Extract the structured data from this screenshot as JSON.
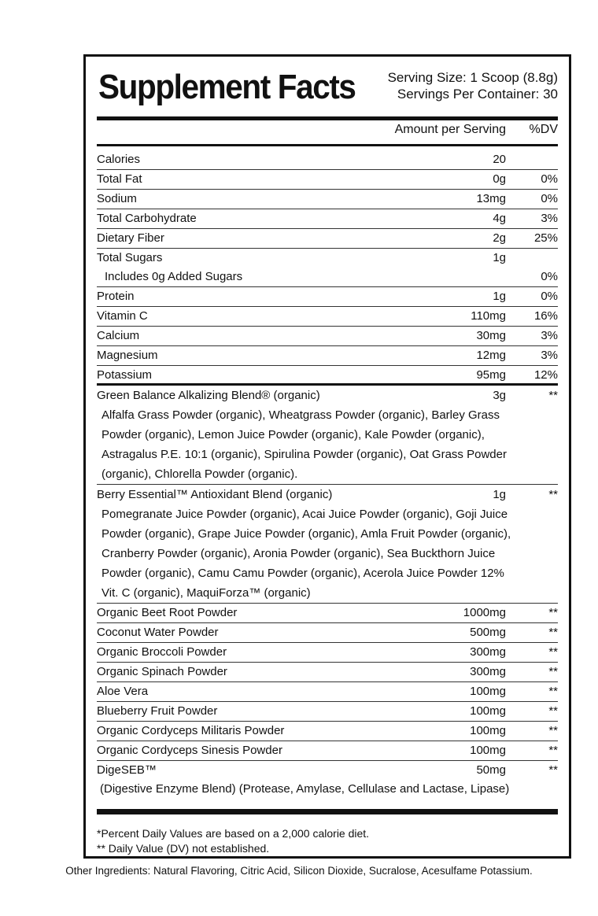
{
  "title": "Supplement Facts",
  "serving_size": "Serving Size: 1  Scoop (8.8g)",
  "servings_per_container": "Servings Per Container: 30",
  "header": {
    "amount": "Amount per Serving",
    "dv": "%DV"
  },
  "nutrients": [
    {
      "name": "Calories",
      "amount": "20",
      "dv": ""
    },
    {
      "name": "Total Fat",
      "amount": "0g",
      "dv": "0%"
    },
    {
      "name": "Sodium",
      "amount": "13mg",
      "dv": "0%"
    },
    {
      "name": "Total Carbohydrate",
      "amount": "4g",
      "dv": "3%"
    },
    {
      "name": "Dietary Fiber",
      "amount": "2g",
      "dv": "25%"
    },
    {
      "name": "Total Sugars",
      "amount": "1g",
      "dv": ""
    },
    {
      "name": "Includes 0g Added Sugars",
      "amount": "",
      "dv": "0%"
    },
    {
      "name": "Protein",
      "amount": "1g",
      "dv": "0%"
    },
    {
      "name": "Vitamin C",
      "amount": "110mg",
      "dv": "16%"
    },
    {
      "name": "Calcium",
      "amount": "30mg",
      "dv": "3%"
    },
    {
      "name": "Magnesium",
      "amount": "12mg",
      "dv": "3%"
    },
    {
      "name": "Potassium",
      "amount": "95mg",
      "dv": "12%"
    }
  ],
  "blends": [
    {
      "name": "Green Balance Alkalizing Blend® (organic)",
      "amount": "3g",
      "dv": "**",
      "lines": [
        "Alfalfa Grass Powder (organic), Wheatgrass Powder (organic), Barley Grass",
        "Powder (organic), Lemon Juice Powder (organic), Kale Powder (organic),",
        "Astragalus P.E. 10:1 (organic), Spirulina Powder (organic), Oat Grass Powder",
        "(organic), Chlorella Powder (organic)."
      ]
    },
    {
      "name": "Berry Essential™ Antioxidant Blend (organic)",
      "amount": "1g",
      "dv": "**",
      "lines": [
        "Pomegranate Juice Powder (organic), Acai Juice Powder (organic), Goji Juice",
        "Powder (organic), Grape Juice Powder (organic), Amla Fruit Powder (organic),",
        "Cranberry Powder (organic), Aronia Powder (organic), Sea Buckthorn Juice",
        "Powder (organic), Camu Camu Powder (organic), Acerola Juice Powder 12%",
        "Vit. C (organic), MaquiForza™ (organic)"
      ]
    }
  ],
  "ingredients": [
    {
      "name": "Organic Beet Root Powder",
      "amount": "1000mg",
      "dv": "**"
    },
    {
      "name": "Coconut Water Powder",
      "amount": "500mg",
      "dv": "**"
    },
    {
      "name": "Organic Broccoli Powder",
      "amount": "300mg",
      "dv": "**"
    },
    {
      "name": "Organic Spinach Powder",
      "amount": "300mg",
      "dv": "**"
    },
    {
      "name": "Aloe Vera",
      "amount": "100mg",
      "dv": "**"
    },
    {
      "name": "Blueberry Fruit Powder",
      "amount": "100mg",
      "dv": "**"
    },
    {
      "name": "Organic Cordyceps Militaris Powder",
      "amount": "100mg",
      "dv": "**"
    },
    {
      "name": "Organic Cordyceps Sinesis Powder",
      "amount": "100mg",
      "dv": "**"
    }
  ],
  "digeseb": {
    "name": "DigeSEB™",
    "amount": "50mg",
    "dv": "**",
    "detail": "(Digestive Enzyme Blend) (Protease, Amylase, Cellulase and Lactase, Lipase)"
  },
  "footnotes": [
    "*Percent Daily Values are based on a 2,000 calorie diet.",
    "** Daily Value (DV) not established."
  ],
  "other_ingredients": "Other Ingredients: Natural Flavoring, Citric Acid, Silicon Dioxide, Sucralose, Acesulfame Potassium."
}
